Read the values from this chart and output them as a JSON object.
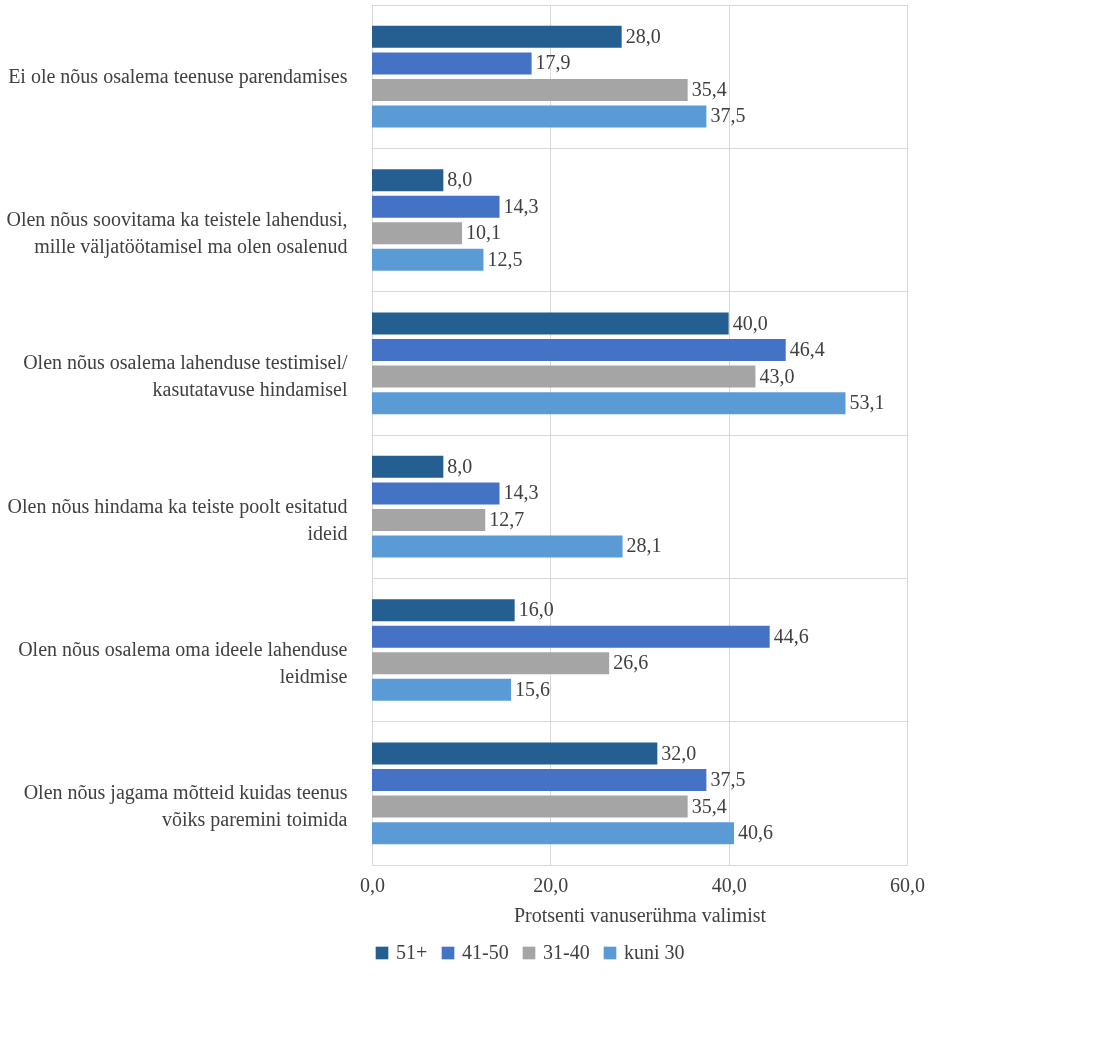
{
  "chart_data": {
    "type": "bar",
    "orientation": "horizontal",
    "categories": [
      "Ei ole nõus osalema teenuse parendamises",
      "Olen nõus soovitama ka teistele lahendusi, mille väljatöötamisel ma olen osalenud",
      "Olen nõus osalema lahenduse testimisel/ kasutatavuse hindamisel",
      "Olen nõus hindama ka teiste poolt esitatud ideid",
      "Olen nõus osalema oma ideele lahenduse leidmise",
      "Olen nõus jagama mõtteid kuidas teenus võiks paremini toimida"
    ],
    "series": [
      {
        "name": "51+",
        "color": "#255e91",
        "values": [
          28.0,
          8.0,
          40.0,
          8.0,
          16.0,
          32.0
        ],
        "value_labels": [
          "28,0",
          "8,0",
          "40,0",
          "8,0",
          "16,0",
          "32,0"
        ]
      },
      {
        "name": "41-50",
        "color": "#4472c4",
        "values": [
          17.9,
          14.3,
          46.4,
          14.3,
          44.6,
          37.5
        ],
        "value_labels": [
          "17,9",
          "14,3",
          "46,4",
          "14,3",
          "44,6",
          "37,5"
        ]
      },
      {
        "name": "31-40",
        "color": "#a5a5a5",
        "values": [
          35.4,
          10.1,
          43.0,
          12.7,
          26.6,
          35.4
        ],
        "value_labels": [
          "35,4",
          "10,1",
          "43,0",
          "12,7",
          "26,6",
          "35,4"
        ]
      },
      {
        "name": "kuni 30",
        "color": "#5b9bd5",
        "values": [
          37.5,
          12.5,
          53.1,
          28.1,
          15.6,
          40.6
        ],
        "value_labels": [
          "37,5",
          "12,5",
          "53,1",
          "28,1",
          "15,6",
          "40,6"
        ]
      }
    ],
    "xlabel": "Protsenti vanuserühma valimist",
    "xlim": [
      0,
      60
    ],
    "xticks": [
      {
        "value": 0,
        "label": "0,0"
      },
      {
        "value": 20,
        "label": "20,0"
      },
      {
        "value": 40,
        "label": "40,0"
      },
      {
        "value": 60,
        "label": "60,0"
      }
    ],
    "grid": true,
    "legend": "bottom"
  }
}
